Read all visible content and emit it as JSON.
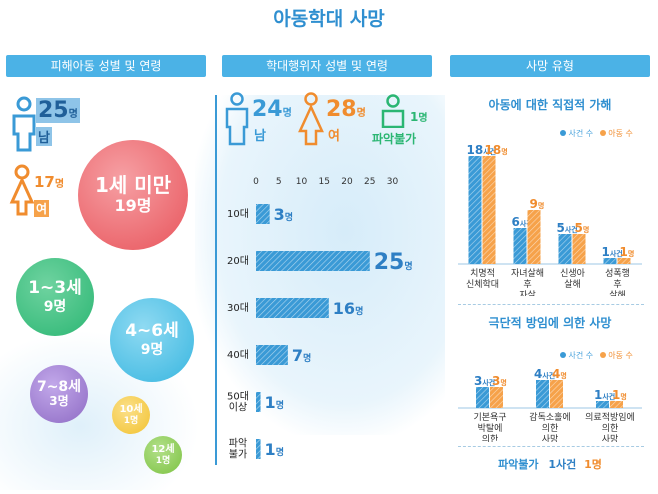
{
  "title": "아동학대 사망",
  "headers": {
    "victims": "피해아동 성별 및 연령",
    "perpetrators": "학대행위자 성별 및 연령",
    "death_types": "사망 유형"
  },
  "victims": {
    "male": {
      "count": "25",
      "unit": "명",
      "label": "남"
    },
    "female": {
      "count": "17",
      "unit": "명",
      "label": "여"
    },
    "age_bubbles": [
      {
        "label": "1세 미만",
        "count": "19명",
        "color": "#e8545b"
      },
      {
        "label": "1~3세",
        "count": "9명",
        "color": "#2bb673"
      },
      {
        "label": "4~6세",
        "count": "9명",
        "color": "#38b6e0"
      },
      {
        "label": "7~8세",
        "count": "3명",
        "color": "#8e6bc4"
      },
      {
        "label": "10세",
        "count": "1명",
        "color": "#f2c230"
      },
      {
        "label": "12세",
        "count": "1명",
        "color": "#7cc242"
      }
    ]
  },
  "perpetrators": {
    "male": {
      "count": "24",
      "unit": "명",
      "label": "남"
    },
    "female": {
      "count": "28",
      "unit": "명",
      "label": "여"
    },
    "unknown": {
      "count": "1",
      "unit": "명",
      "label": "파악불가"
    }
  },
  "chart_data": [
    {
      "type": "bar",
      "orientation": "horizontal",
      "categories": [
        "10대",
        "20대",
        "30대",
        "40대",
        "50대 이상",
        "파악 불가"
      ],
      "values": [
        3,
        25,
        16,
        7,
        1,
        1
      ],
      "value_labels": [
        "3",
        "25",
        "16",
        "7",
        "1",
        "1"
      ],
      "unit": "명",
      "xticks": [
        "0",
        "5",
        "10",
        "15",
        "20",
        "25",
        "30"
      ],
      "xlim": [
        0,
        30
      ],
      "color": "#3a9ad6"
    },
    {
      "type": "bar",
      "title": "아동에 대한 직접적 가해",
      "categories": [
        "치명적 신체학대",
        "자녀살해 후 자살",
        "신생아 살해",
        "성폭행 후 살해"
      ],
      "series": [
        {
          "name": "사건 수",
          "values": [
            18,
            6,
            5,
            1
          ],
          "unit": "사건",
          "color": "#3a9ad6"
        },
        {
          "name": "아동 수",
          "values": [
            18,
            9,
            5,
            1
          ],
          "unit": "명",
          "color": "#f6a24a"
        }
      ],
      "legend": "top-right"
    },
    {
      "type": "bar",
      "title": "극단적 방임에 의한 사망",
      "categories": [
        "기본욕구 박탈에 의한 사망",
        "감독소홀에 의한 사망",
        "의료적방임에 의한 사망"
      ],
      "series": [
        {
          "name": "사건 수",
          "values": [
            3,
            4,
            1
          ],
          "unit": "사건",
          "color": "#3a9ad6"
        },
        {
          "name": "아동 수",
          "values": [
            3,
            4,
            1
          ],
          "unit": "명",
          "color": "#f6a24a"
        }
      ],
      "legend": "top-right"
    }
  ],
  "unknown_type": {
    "label": "파악불가",
    "cases": "1사건",
    "children": "1명"
  },
  "colors": {
    "accent": "#2f8fd0",
    "male": "#3a9ad6",
    "female": "#f08c2e",
    "unknown": "#2bb673"
  }
}
